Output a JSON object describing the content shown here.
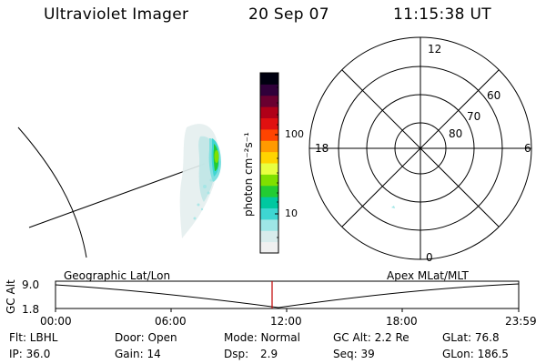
{
  "header": {
    "title": "Ultraviolet Imager",
    "date": "20 Sep 07",
    "time": "11:15:38 UT"
  },
  "colorbar": {
    "unit_label": "photon cm⁻²s⁻¹",
    "ticks": [
      "100",
      "10"
    ],
    "colors": [
      "#f0f0f0",
      "#d8ecec",
      "#9ee6e6",
      "#3ed6d2",
      "#00c8a0",
      "#22cc33",
      "#7fe000",
      "#e8ff40",
      "#ffd400",
      "#ff9a00",
      "#ff4400",
      "#e01010",
      "#b00018",
      "#6a0030",
      "#30003a",
      "#000010"
    ]
  },
  "polar": {
    "mlt_labels": {
      "top": "12",
      "left": "18",
      "right": "6",
      "bottom": "0"
    },
    "lat_labels": [
      "80",
      "70",
      "60"
    ]
  },
  "timeline": {
    "panel_left": "Geographic Lat/Lon",
    "panel_right": "Apex MLat/MLT",
    "axis_title": "GC Alt",
    "y_top": "9.0",
    "y_bottom": "1.8",
    "x_ticks": [
      "00:00",
      "06:00",
      "12:00",
      "18:00",
      "23:59"
    ]
  },
  "footer": {
    "filter": "Flt: LBHL",
    "door": "Door: Open",
    "mode": "Mode: Normal",
    "gc_alt": "GC Alt: 2.2 Re",
    "glat": "GLat: 76.8",
    "ip": "IP: 36.0",
    "gain": "Gain: 14",
    "dsp_label": "Dsp:",
    "dsp_value": "2.9",
    "seq": "Seq: 39",
    "glon": "GLon: 186.5"
  }
}
